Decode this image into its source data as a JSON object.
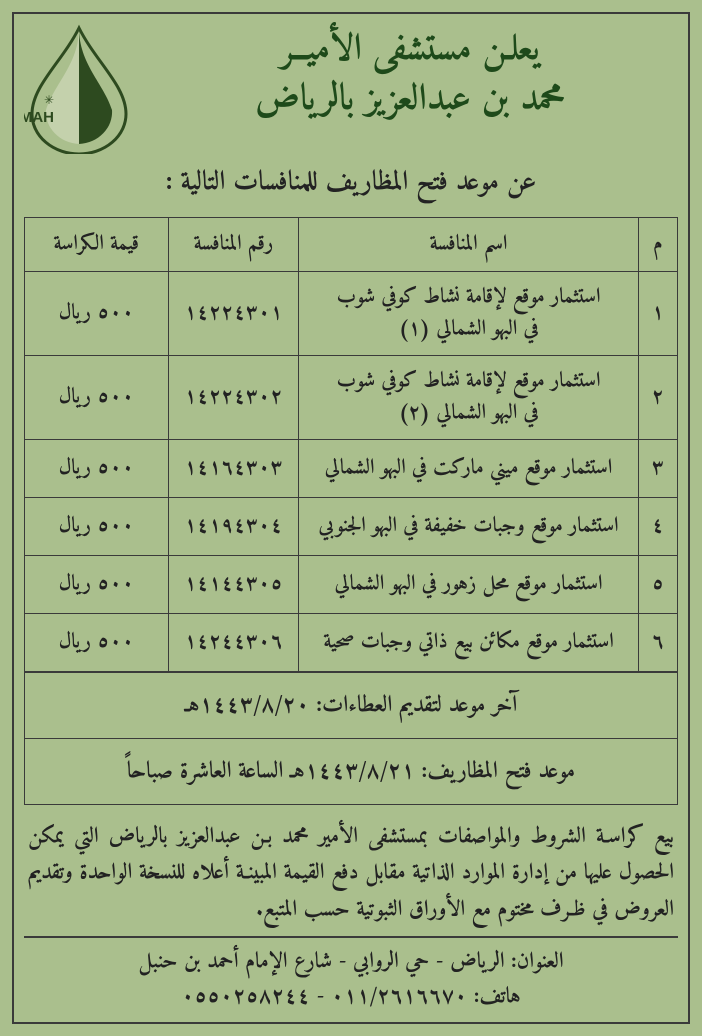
{
  "colors": {
    "bg": "#aabf8d",
    "border": "#3a3a3a",
    "title": "#1e4a1a",
    "text": "#222222",
    "logo_light": "#c7d3af",
    "logo_dark": "#2d4a1f"
  },
  "logo": {
    "text": "PMAH"
  },
  "header": {
    "line1": "يعلـن مستشفى الأميــر",
    "line2": "محمد بن عبدالعزيز بالرياض"
  },
  "subtitle": "عن موعد فتح المظاريف للمنافسات التالية :",
  "table": {
    "columns": {
      "num": "م",
      "name": "اسم المنافسة",
      "tender_no": "رقم المنافسة",
      "price": "قيمة الكراسة"
    },
    "rows": [
      {
        "num": "١",
        "name": "استثمار موقع لإقامة نشاط كوفي شوب\nفي البهو الشمالي (١)",
        "tender_no": "١٤٢٢٤٣٠١",
        "price": "٥٠٠ ريال"
      },
      {
        "num": "٢",
        "name": "استثمار موقع لإقامة نشاط كوفي شوب\nفي البهو الشمالي (٢)",
        "tender_no": "١٤٢٢٤٣٠٢",
        "price": "٥٠٠ ريال"
      },
      {
        "num": "٣",
        "name": "استثمار موقع ميني ماركت في البهو الشمالي",
        "tender_no": "١٤١٦٤٣٠٣",
        "price": "٥٠٠ ريال"
      },
      {
        "num": "٤",
        "name": "استثمار موقع وجبات خفيفة في البهو الجنوبي",
        "tender_no": "١٤١٩٤٣٠٤",
        "price": "٥٠٠ ريال"
      },
      {
        "num": "٥",
        "name": "استثمار موقع محل زهور في البهو الشمالي",
        "tender_no": "١٤١٤٤٣٠٥",
        "price": "٥٠٠ ريال"
      },
      {
        "num": "٦",
        "name": "استثمار موقع مكائن بيع ذاتي وجبات صحية",
        "tender_no": "١٤٢٤٤٣٠٦",
        "price": "٥٠٠ ريال"
      }
    ]
  },
  "dates": {
    "last_submit": "آخر موعد لتقديم العطاءات: ١٤٤٣/٨/٢٠هـ",
    "open": "موعد فتح المظاريف: ١٤٤٣/٨/٢١هـ الساعة العاشرة صباحاً"
  },
  "note": "بيع كراسـة الشروط والمواصفات بمستشفى الأمير محمد بـن عبدالعزيز بالرياض التي يمكن الحصول عليها من إدارة الموارد الذاتية مقابل دفع القيمة المبينـة أعلاه للنسخة الواحدة وتقديم العروض في ظـرف مختوم مع الأوراق الثبوتية حسب المتبع.",
  "contact": {
    "address": "العنوان: الرياض - حي الروابي - شارع الإمام أحمد بن حنبل",
    "phones": "هاتف: ٠١١/٢٦١٦٦٧٠ - ٠٥٥٠٢٥٨٢٤٤"
  }
}
